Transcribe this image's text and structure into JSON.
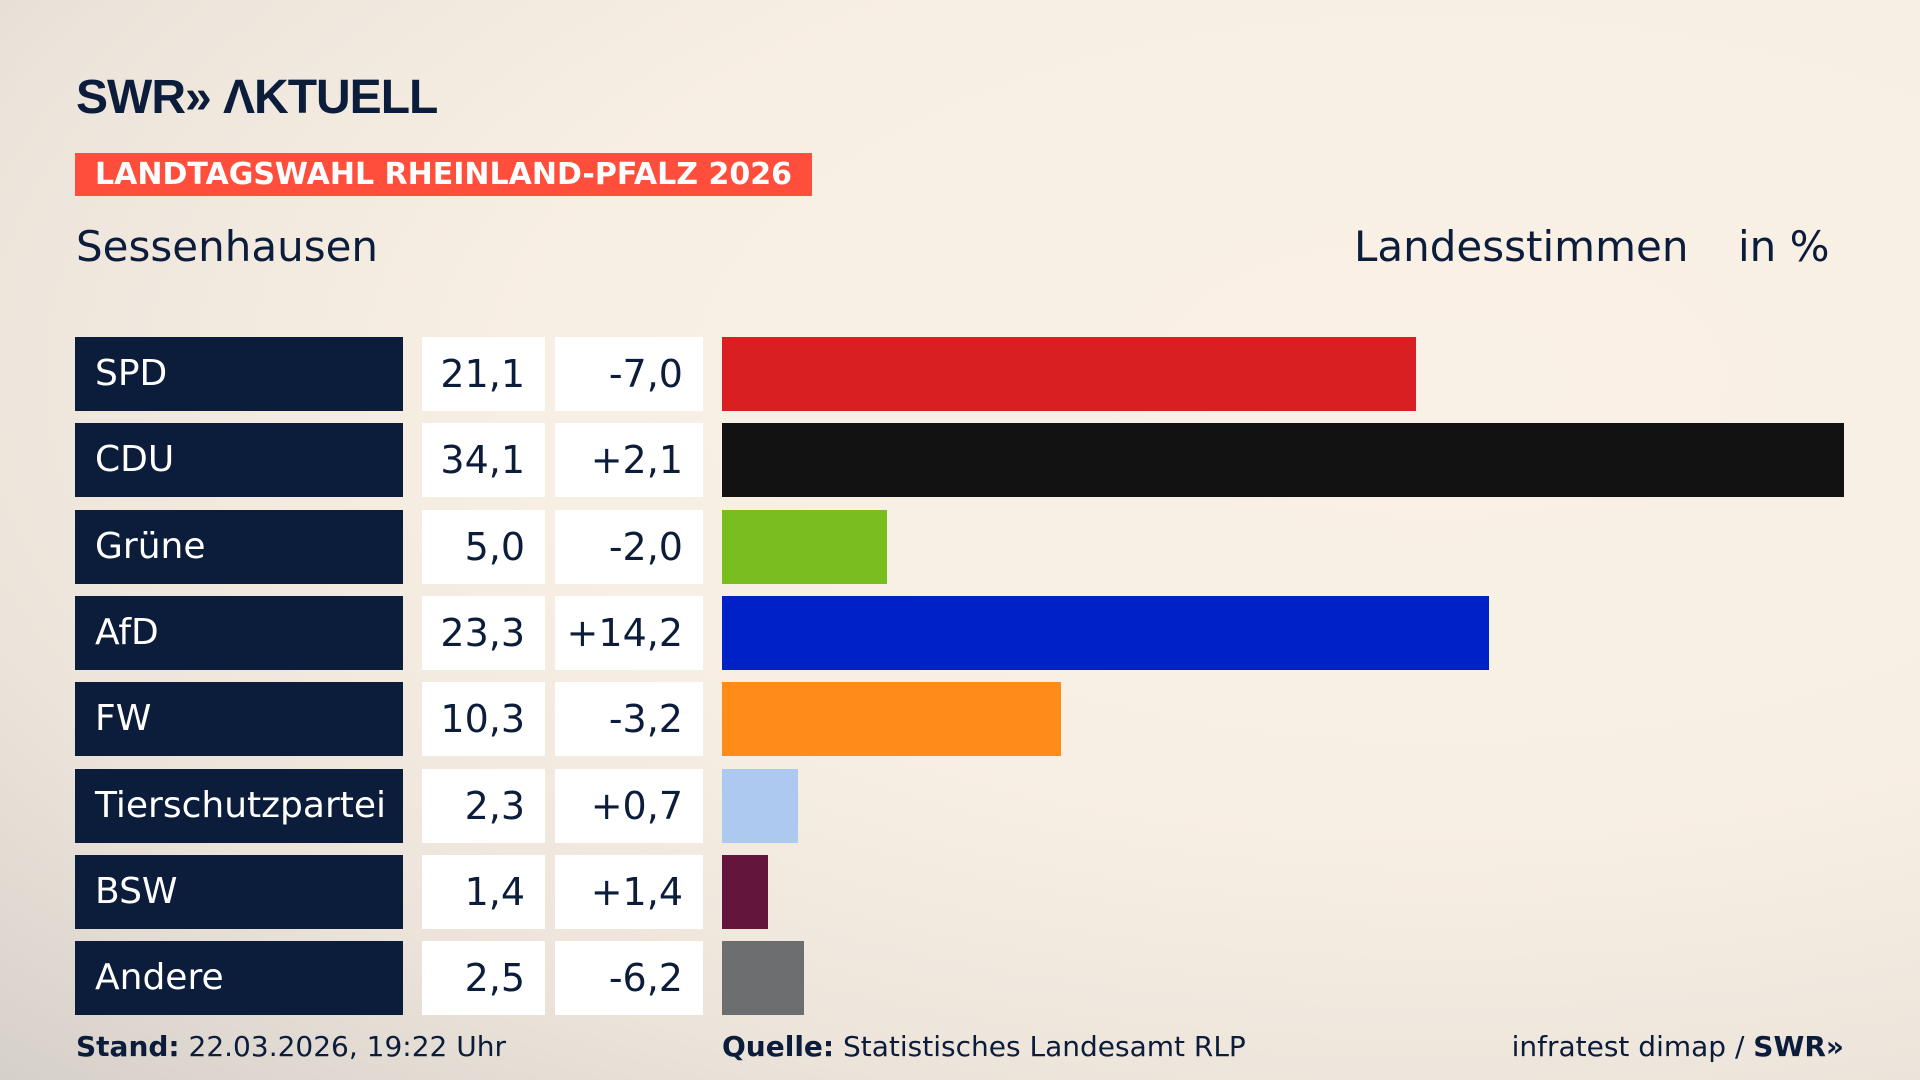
{
  "header": {
    "logo": "SWR» ΛKTUELL",
    "badge": "LANDTAGSWAHL RHEINLAND-PFALZ 2026",
    "place": "Sessenhausen",
    "vote_type": "Landesstimmen",
    "unit": "in %"
  },
  "chart_data": {
    "type": "bar",
    "orientation": "horizontal",
    "categories": [
      "SPD",
      "CDU",
      "Grüne",
      "AfD",
      "FW",
      "Tierschutzpartei",
      "BSW",
      "Andere"
    ],
    "values": [
      21.1,
      34.1,
      5.0,
      23.3,
      10.3,
      2.3,
      1.4,
      2.5
    ],
    "values_label": [
      "21,1",
      "34,1",
      "5,0",
      "23,3",
      "10,3",
      "2,3",
      "1,4",
      "2,5"
    ],
    "diff_label": [
      "-7,0",
      "+2,1",
      "-2,0",
      "+14,2",
      "-3,2",
      "+0,7",
      "+1,4",
      "-6,2"
    ],
    "diff": [
      -7.0,
      2.1,
      -2.0,
      14.2,
      -3.2,
      0.7,
      1.4,
      -6.2
    ],
    "colors": [
      "#d91f22",
      "#121212",
      "#79bd1e",
      "#0021c8",
      "#ff8c19",
      "#adc9f0",
      "#64153c",
      "#6d6e70"
    ],
    "grid": false
  },
  "footer": {
    "stand_label": "Stand:",
    "stand": "22.03.2026, 19:22 Uhr",
    "source_label": "Quelle:",
    "source": "Statistisches Landesamt RLP",
    "credit": "infratest dimap / ",
    "credit_logo": "SWR»"
  }
}
